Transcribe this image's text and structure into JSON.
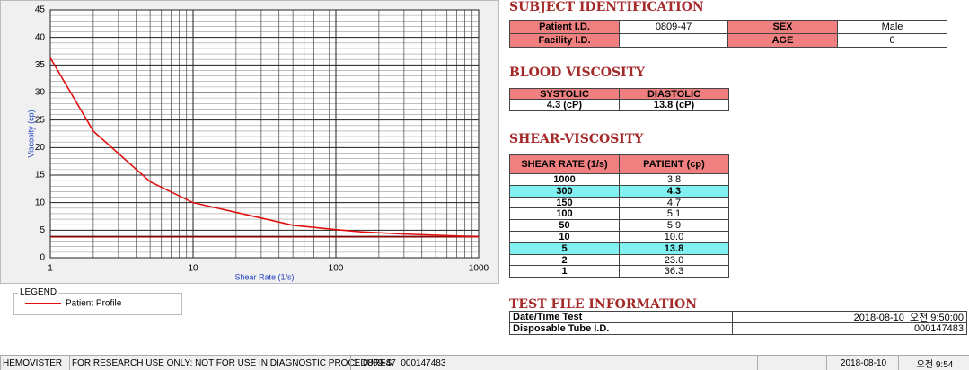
{
  "chart_data": {
    "type": "line",
    "x_label": "Shear Rate (1/s)",
    "y_label": "Viscosity (cp)",
    "legend_title": "LEGEND",
    "xlim": [
      1,
      1000
    ],
    "xticks": [
      1,
      10,
      100,
      1000
    ],
    "xlog": true,
    "ylim": [
      0,
      45
    ],
    "yticks": [
      0,
      5,
      10,
      15,
      20,
      25,
      30,
      35,
      40,
      45
    ],
    "grid": true,
    "series": [
      {
        "name": "Patient Profile",
        "color": "#e01010",
        "x": [
          1,
          2,
          5,
          10,
          50,
          100,
          150,
          300,
          1000
        ],
        "values": [
          36.3,
          23.0,
          13.8,
          10.0,
          5.9,
          5.1,
          4.7,
          4.3,
          3.8
        ]
      },
      {
        "color": "#8b0000",
        "x": [
          1,
          1000
        ],
        "values": [
          3.8,
          3.8
        ]
      }
    ]
  },
  "subject": {
    "title": "SUBJECT IDENTIFICATION",
    "rows": [
      [
        "Patient I.D.",
        "0809-47",
        "SEX",
        "Male"
      ],
      [
        "Facility I.D.",
        null,
        "AGE",
        "0"
      ]
    ]
  },
  "blood_viscosity": {
    "title": "BLOOD VISCOSITY",
    "headers": [
      "SYSTOLIC",
      "DIASTOLIC"
    ],
    "values": [
      "4.3 (cP)",
      "13.8 (cP)"
    ]
  },
  "shear_viscosity": {
    "title": "SHEAR-VISCOSITY",
    "headers": [
      "SHEAR RATE (1/s)",
      "PATIENT (cp)"
    ],
    "rows": [
      {
        "cells": [
          "1000",
          "3.8"
        ],
        "highlight": false
      },
      {
        "cells": [
          "300",
          "4.3"
        ],
        "highlight": true
      },
      {
        "cells": [
          "150",
          "4.7"
        ],
        "highlight": false
      },
      {
        "cells": [
          "100",
          "5.1"
        ],
        "highlight": false
      },
      {
        "cells": [
          "50",
          "5.9"
        ],
        "highlight": false
      },
      {
        "cells": [
          "10",
          "10.0"
        ],
        "highlight": false
      },
      {
        "cells": [
          "5",
          "13.8"
        ],
        "highlight": true
      },
      {
        "cells": [
          "2",
          "23.0"
        ],
        "highlight": false
      },
      {
        "cells": [
          "1",
          "36.3"
        ],
        "highlight": false
      }
    ]
  },
  "test_file": {
    "title": "TEST FILE INFORMATION",
    "rows": [
      [
        "Date/Time Test",
        "2018-08-10  오전 9:50:00"
      ],
      [
        "Disposable Tube I.D.",
        "000147483"
      ]
    ]
  },
  "status_bar": [
    "HEMOVISTER",
    "FOR RESEARCH USE ONLY: NOT FOR USE IN DIAGNOSTIC PROCEDURES",
    "1  0809-47  000147483",
    null,
    "2018-08-10",
    "오전 9:54"
  ]
}
